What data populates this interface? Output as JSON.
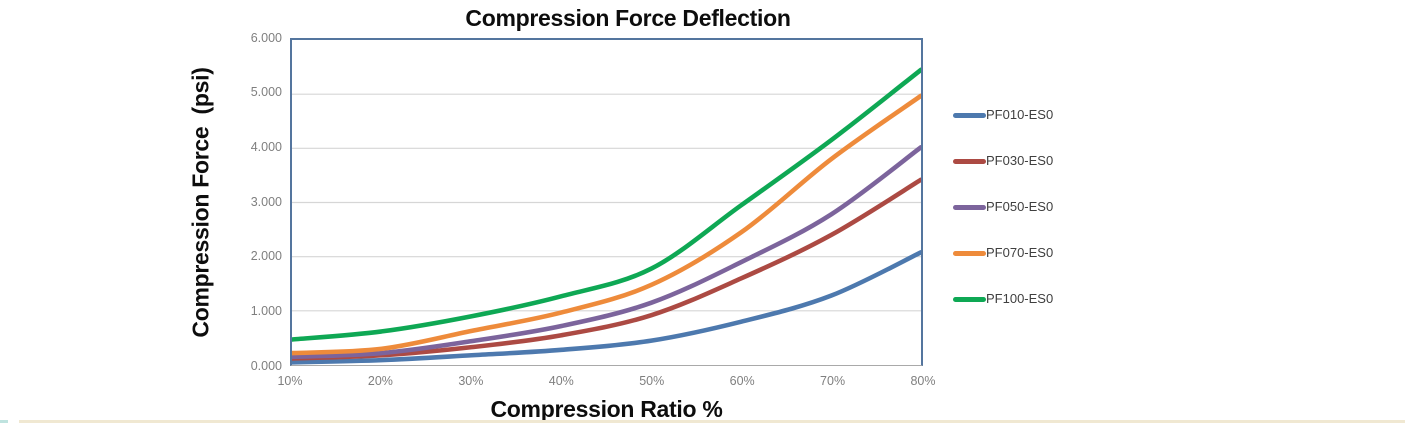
{
  "chart_data": {
    "type": "line",
    "title": "Compression Force Deflection",
    "xlabel": "Compression Ratio %",
    "ylabel": "Compression Force  (psi)",
    "x_categories": [
      "10%",
      "20%",
      "30%",
      "40%",
      "50%",
      "60%",
      "70%",
      "80%"
    ],
    "y_tick_labels": [
      "0.000",
      "1.000",
      "2.000",
      "3.000",
      "4.000",
      "5.000",
      "6.000"
    ],
    "ylim": [
      0,
      6
    ],
    "grid": "horizontal-only",
    "legend_position": "right",
    "series": [
      {
        "name": "PF010-ES0",
        "color": "#4d79ae",
        "values": [
          0.05,
          0.09,
          0.18,
          0.28,
          0.45,
          0.8,
          1.28,
          2.08
        ]
      },
      {
        "name": "PF030-ES0",
        "color": "#ac4a43",
        "values": [
          0.12,
          0.18,
          0.33,
          0.55,
          0.92,
          1.6,
          2.4,
          3.42
        ]
      },
      {
        "name": "PF050-ES0",
        "color": "#7c649c",
        "values": [
          0.15,
          0.22,
          0.44,
          0.72,
          1.15,
          1.9,
          2.78,
          4.02
        ]
      },
      {
        "name": "PF070-ES0",
        "color": "#ee8b3b",
        "values": [
          0.22,
          0.3,
          0.63,
          0.97,
          1.48,
          2.45,
          3.8,
          4.97
        ]
      },
      {
        "name": "PF100-ES0",
        "color": "#0ea854",
        "values": [
          0.47,
          0.62,
          0.9,
          1.27,
          1.78,
          2.95,
          4.15,
          5.45
        ]
      }
    ],
    "style": {
      "plot_border_color": "#54759e",
      "axis_line_color": "#a9a9a9",
      "gridline_color": "#d6d6d6",
      "tick_label_color": "#7f7f7f",
      "legend_text_color": "#3f3f3f",
      "line_width": 4.6
    }
  },
  "decor": {
    "bottom_accent_color": "#bfe3df",
    "bottom_rule_color": "#f0e8d2"
  }
}
